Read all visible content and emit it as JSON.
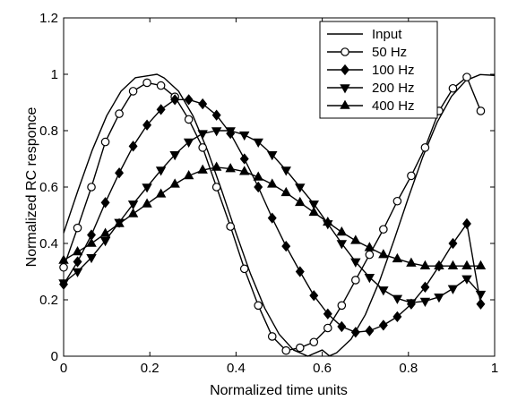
{
  "chart_data": {
    "type": "line",
    "title": "",
    "xlabel": "Normalized time units",
    "ylabel": "Normalized RC responce",
    "xlim": [
      0,
      1
    ],
    "ylim": [
      0,
      1.2
    ],
    "xticks": [
      0,
      0.2,
      0.4,
      0.6,
      0.8,
      1
    ],
    "xtick_labels": [
      "0",
      "0.2",
      "0.4",
      "0.6",
      "0.8",
      "1"
    ],
    "yticks": [
      0,
      0.2,
      0.4,
      0.6,
      0.8,
      1,
      1.2
    ],
    "ytick_labels": [
      "0",
      "0.2",
      "0.4",
      "0.6",
      "0.8",
      "1",
      "1.2"
    ],
    "grid": false,
    "legend_position": "top-right",
    "series": [
      {
        "name": "Input",
        "marker": "none",
        "x": [
          0,
          0.0333,
          0.0667,
          0.1,
          0.1333,
          0.1667,
          0.2,
          0.2167,
          0.2333,
          0.2667,
          0.3,
          0.3333,
          0.3667,
          0.4,
          0.4333,
          0.4667,
          0.5,
          0.5333,
          0.5667,
          0.6,
          0.6167,
          0.6333,
          0.6667,
          0.7,
          0.7333,
          0.7667,
          0.8,
          0.8333,
          0.8667,
          0.9,
          0.9333,
          0.9667,
          1
        ],
        "y": [
          0.437,
          0.588,
          0.732,
          0.853,
          0.94,
          0.988,
          0.996,
          1.0,
          0.987,
          0.94,
          0.853,
          0.732,
          0.588,
          0.437,
          0.293,
          0.17,
          0.078,
          0.022,
          0.0,
          0.022,
          0.001,
          0.012,
          0.06,
          0.147,
          0.268,
          0.412,
          0.563,
          0.707,
          0.83,
          0.922,
          0.978,
          0.999,
          0.996
        ]
      },
      {
        "name": "50 Hz",
        "marker": "circle",
        "x": [
          0,
          0.0323,
          0.0645,
          0.0968,
          0.129,
          0.1613,
          0.1935,
          0.2258,
          0.2581,
          0.2903,
          0.3226,
          0.3548,
          0.3871,
          0.4194,
          0.4516,
          0.4839,
          0.5161,
          0.5484,
          0.5806,
          0.6129,
          0.6452,
          0.6774,
          0.7097,
          0.7419,
          0.7742,
          0.8065,
          0.8387,
          0.871,
          0.9032,
          0.9355,
          0.9677
        ],
        "y": [
          0.315,
          0.455,
          0.6,
          0.76,
          0.86,
          0.94,
          0.97,
          0.96,
          0.92,
          0.84,
          0.74,
          0.6,
          0.46,
          0.31,
          0.18,
          0.07,
          0.02,
          0.03,
          0.05,
          0.1,
          0.18,
          0.27,
          0.36,
          0.45,
          0.55,
          0.64,
          0.74,
          0.87,
          0.95,
          0.99,
          0.87
        ]
      },
      {
        "name": "100 Hz",
        "marker": "diamond",
        "x": [
          0,
          0.0323,
          0.0645,
          0.0968,
          0.129,
          0.1613,
          0.1935,
          0.2258,
          0.2581,
          0.2903,
          0.3226,
          0.3548,
          0.3871,
          0.4194,
          0.4516,
          0.4839,
          0.5161,
          0.5484,
          0.5806,
          0.6129,
          0.6452,
          0.6774,
          0.7097,
          0.7419,
          0.7742,
          0.8065,
          0.8387,
          0.871,
          0.9032,
          0.9355,
          0.9677
        ],
        "y": [
          0.255,
          0.335,
          0.43,
          0.545,
          0.65,
          0.745,
          0.82,
          0.875,
          0.91,
          0.91,
          0.895,
          0.855,
          0.79,
          0.7,
          0.6,
          0.49,
          0.39,
          0.3,
          0.215,
          0.15,
          0.105,
          0.085,
          0.09,
          0.11,
          0.14,
          0.185,
          0.245,
          0.32,
          0.4,
          0.47,
          0.185
        ]
      },
      {
        "name": "200 Hz",
        "marker": "triangle-down",
        "x": [
          0,
          0.0323,
          0.0645,
          0.0968,
          0.129,
          0.1613,
          0.1935,
          0.2258,
          0.2581,
          0.2903,
          0.3226,
          0.3548,
          0.3871,
          0.4194,
          0.4516,
          0.4839,
          0.5161,
          0.5484,
          0.5806,
          0.6129,
          0.6452,
          0.6774,
          0.7097,
          0.7419,
          0.7742,
          0.8065,
          0.8387,
          0.871,
          0.9032,
          0.9355,
          0.9677
        ],
        "y": [
          0.26,
          0.3,
          0.35,
          0.41,
          0.475,
          0.54,
          0.6,
          0.66,
          0.715,
          0.76,
          0.79,
          0.8,
          0.8,
          0.785,
          0.76,
          0.715,
          0.66,
          0.6,
          0.54,
          0.47,
          0.4,
          0.335,
          0.28,
          0.235,
          0.205,
          0.19,
          0.195,
          0.21,
          0.24,
          0.275,
          0.22
        ]
      },
      {
        "name": "400 Hz",
        "marker": "triangle-up",
        "x": [
          0,
          0.0323,
          0.0645,
          0.0968,
          0.129,
          0.1613,
          0.1935,
          0.2258,
          0.2581,
          0.2903,
          0.3226,
          0.3548,
          0.3871,
          0.4194,
          0.4516,
          0.4839,
          0.5161,
          0.5484,
          0.5806,
          0.6129,
          0.6452,
          0.6774,
          0.7097,
          0.7419,
          0.7742,
          0.8065,
          0.8387,
          0.871,
          0.9032,
          0.9355,
          0.9677
        ],
        "y": [
          0.34,
          0.37,
          0.4,
          0.435,
          0.47,
          0.505,
          0.54,
          0.575,
          0.61,
          0.64,
          0.66,
          0.67,
          0.665,
          0.655,
          0.635,
          0.61,
          0.58,
          0.545,
          0.51,
          0.475,
          0.44,
          0.41,
          0.385,
          0.36,
          0.345,
          0.33,
          0.32,
          0.32,
          0.32,
          0.32,
          0.32
        ]
      }
    ]
  }
}
